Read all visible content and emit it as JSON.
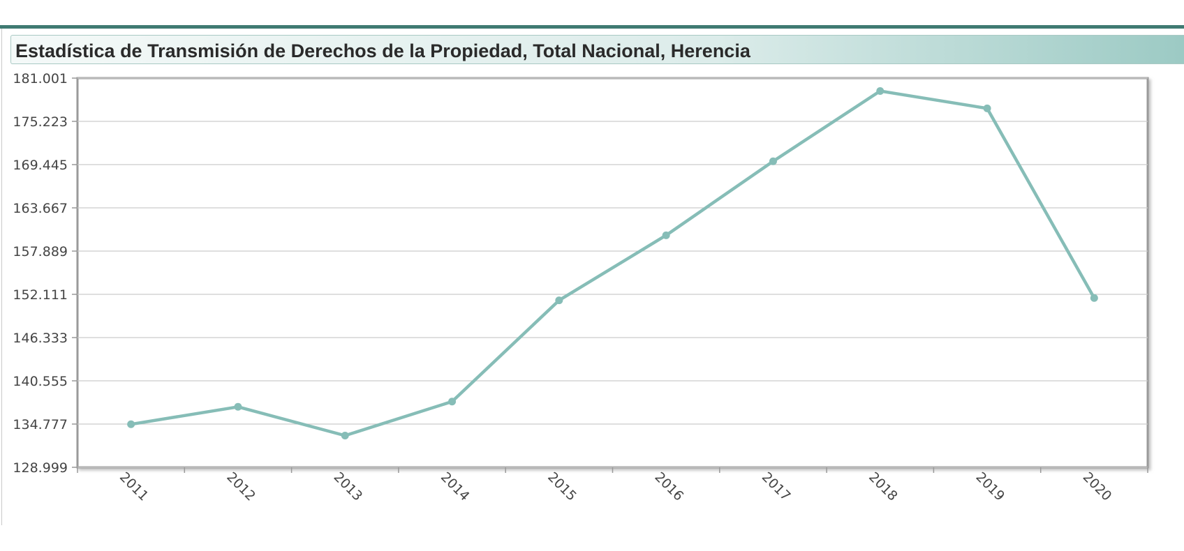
{
  "chart_data": {
    "type": "line",
    "title": "Estadística de Transmisión de Derechos de la Propiedad, Total Nacional, Herencia",
    "categories": [
      "2011",
      "2012",
      "2013",
      "2014",
      "2015",
      "2016",
      "2017",
      "2018",
      "2019",
      "2020"
    ],
    "values": [
      134750,
      137080,
      133240,
      137780,
      151310,
      160000,
      169890,
      179280,
      176960,
      151620
    ],
    "color": "#86bdb7",
    "ylim": [
      128999,
      181001
    ],
    "yticks": [
      {
        "value": 128999,
        "label": "128.999"
      },
      {
        "value": 134777,
        "label": "134.777"
      },
      {
        "value": 140555,
        "label": "140.555"
      },
      {
        "value": 146333,
        "label": "146.333"
      },
      {
        "value": 152111,
        "label": "152.111"
      },
      {
        "value": 157889,
        "label": "157.889"
      },
      {
        "value": 163667,
        "label": "163.667"
      },
      {
        "value": 169445,
        "label": "169.445"
      },
      {
        "value": 175223,
        "label": "175.223"
      },
      {
        "value": 181001,
        "label": "181.001"
      }
    ],
    "grid": true
  }
}
